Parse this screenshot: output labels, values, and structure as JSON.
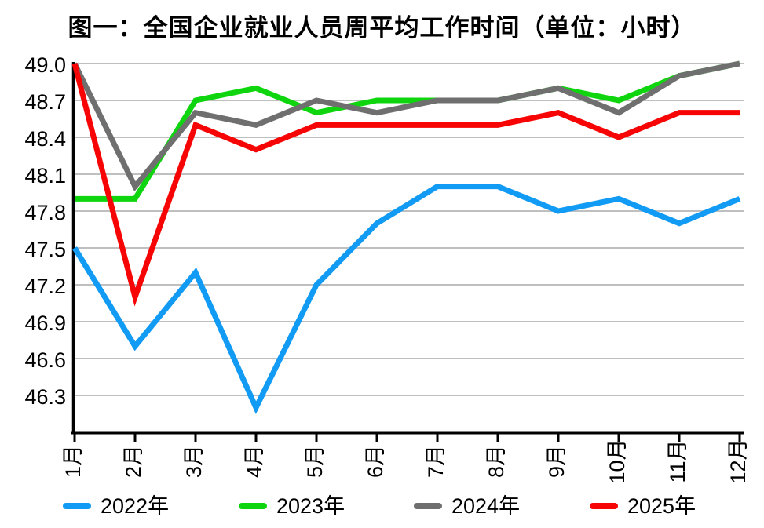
{
  "chart_data": {
    "type": "line",
    "title": "图一：全国企业就业人员周平均工作时间（单位：小时）",
    "xlabel": "",
    "ylabel": "",
    "categories": [
      "1月",
      "2月",
      "3月",
      "4月",
      "5月",
      "6月",
      "7月",
      "8月",
      "9月",
      "10月",
      "11月",
      "12月"
    ],
    "series": [
      {
        "name": "2022年",
        "color": "#119BF4",
        "values": [
          47.5,
          46.7,
          47.3,
          46.2,
          47.2,
          47.7,
          48.0,
          48.0,
          47.8,
          47.9,
          47.7,
          47.9
        ]
      },
      {
        "name": "2023年",
        "color": "#0ED50E",
        "values": [
          47.9,
          47.9,
          48.7,
          48.8,
          48.6,
          48.7,
          48.7,
          48.7,
          48.8,
          48.7,
          48.9,
          49.0
        ]
      },
      {
        "name": "2024年",
        "color": "#6F6F6F",
        "values": [
          49.0,
          48.0,
          48.6,
          48.5,
          48.7,
          48.6,
          48.7,
          48.7,
          48.8,
          48.6,
          48.9,
          49.0
        ]
      },
      {
        "name": "2025年",
        "color": "#F70505",
        "values": [
          49.0,
          47.1,
          48.5,
          48.3,
          48.5,
          48.5,
          48.5,
          48.5,
          48.6,
          48.4,
          48.6,
          48.6
        ]
      }
    ],
    "ylim": [
      46.0,
      49.0
    ],
    "yticks": [
      46.3,
      46.6,
      46.9,
      47.2,
      47.5,
      47.8,
      48.1,
      48.4,
      48.7,
      49.0
    ],
    "ytick_labels": [
      "46.3",
      "46.6",
      "46.9",
      "47.2",
      "47.5",
      "47.8",
      "48.1",
      "48.4",
      "48.7",
      "49.0"
    ],
    "grid": true,
    "legend_position": "bottom"
  },
  "colors": {
    "background": "#FFFFFF",
    "gridline": "#BFBFBF",
    "axis": "#000000",
    "text": "#000000"
  }
}
